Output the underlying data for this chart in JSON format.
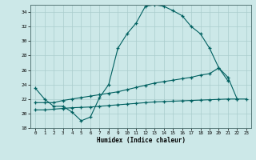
{
  "xlabel": "Humidex (Indice chaleur)",
  "background_color": "#cce8e8",
  "grid_color": "#aacccc",
  "line_color": "#006060",
  "xlim": [
    -0.5,
    23.5
  ],
  "ylim": [
    18,
    35
  ],
  "yticks": [
    18,
    20,
    22,
    24,
    26,
    28,
    30,
    32,
    34
  ],
  "xticks": [
    0,
    1,
    2,
    3,
    4,
    5,
    6,
    7,
    8,
    9,
    10,
    11,
    12,
    13,
    14,
    15,
    16,
    17,
    18,
    19,
    20,
    21,
    22,
    23
  ],
  "series": [
    {
      "x": [
        0,
        1,
        2,
        3,
        4,
        5,
        6,
        7,
        8,
        9,
        10,
        11,
        12,
        13,
        14,
        15,
        16,
        17,
        18,
        19,
        20,
        21
      ],
      "y": [
        23.5,
        22.0,
        21.0,
        21.0,
        20.2,
        19.0,
        19.5,
        22.2,
        24.0,
        29.0,
        31.0,
        32.5,
        34.8,
        35.0,
        34.8,
        34.2,
        33.5,
        32.0,
        31.0,
        29.0,
        26.3,
        24.5
      ]
    },
    {
      "x": [
        0,
        1,
        2,
        3,
        4,
        5,
        6,
        7,
        8,
        9,
        10,
        11,
        12,
        13,
        14,
        15,
        16,
        17,
        18,
        19,
        20,
        21,
        22
      ],
      "y": [
        21.5,
        21.5,
        21.5,
        21.8,
        22.0,
        22.2,
        22.4,
        22.6,
        22.8,
        23.0,
        23.3,
        23.6,
        23.9,
        24.2,
        24.4,
        24.6,
        24.8,
        25.0,
        25.3,
        25.5,
        26.3,
        25.0,
        22.0
      ]
    },
    {
      "x": [
        0,
        1,
        2,
        3,
        4,
        5,
        6,
        7,
        8,
        9,
        10,
        11,
        12,
        13,
        14,
        15,
        16,
        17,
        18,
        19,
        20,
        21,
        22,
        23
      ],
      "y": [
        20.5,
        20.5,
        20.6,
        20.7,
        20.8,
        20.85,
        20.9,
        21.0,
        21.1,
        21.2,
        21.3,
        21.4,
        21.5,
        21.6,
        21.65,
        21.7,
        21.75,
        21.8,
        21.85,
        21.9,
        21.95,
        22.0,
        22.0,
        22.0
      ]
    }
  ]
}
